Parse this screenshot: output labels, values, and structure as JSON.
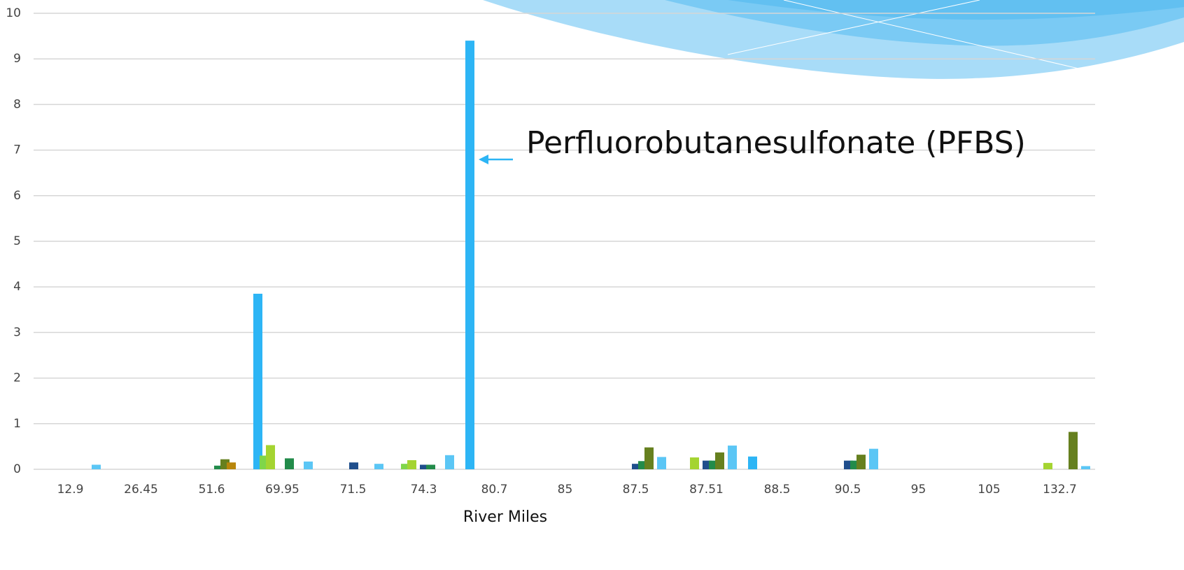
{
  "chart_data": {
    "type": "bar",
    "annotation": "Perfluorobutanesulfonate (PFBS)",
    "x_label": "River Miles",
    "categories": [
      "12.9",
      "26.45",
      "51.6",
      "69.95",
      "71.5",
      "74.3",
      "80.7",
      "85",
      "87.5",
      "87.51",
      "88.5",
      "90.5",
      "95",
      "105",
      "132.7"
    ],
    "series": [
      {
        "color": "#2db5f5",
        "values": [
          0,
          0,
          0,
          3.85,
          0,
          0,
          9.4,
          0,
          0,
          0,
          0.28,
          0,
          0,
          0,
          0
        ]
      },
      {
        "color": "#7fd64a",
        "values": [
          0,
          0,
          0,
          0.3,
          0,
          0.12,
          0,
          0,
          0,
          0,
          0,
          0,
          0,
          0,
          0
        ]
      },
      {
        "color": "#a4d431",
        "values": [
          0,
          0,
          0,
          0.53,
          0,
          0.2,
          0,
          0,
          0,
          0.26,
          0,
          0,
          0,
          0,
          0.14
        ]
      },
      {
        "color": "#1f4e8c",
        "values": [
          0,
          0,
          0,
          0,
          0.15,
          0.1,
          0,
          0,
          0.12,
          0.19,
          0,
          0.19,
          0,
          0,
          0
        ]
      },
      {
        "color": "#228b4a",
        "values": [
          0,
          0,
          0.08,
          0.24,
          0,
          0.1,
          0,
          0,
          0.18,
          0.19,
          0,
          0.19,
          0,
          0,
          0
        ]
      },
      {
        "color": "#66801f",
        "values": [
          0,
          0,
          0.22,
          0,
          0,
          0,
          0,
          0,
          0.48,
          0.37,
          0,
          0.32,
          0,
          0,
          0.82
        ]
      },
      {
        "color": "#b8860b",
        "values": [
          0,
          0,
          0.15,
          0,
          0,
          0,
          0,
          0,
          0,
          0,
          0,
          0,
          0,
          0,
          0
        ]
      },
      {
        "color": "#5bc6f5",
        "values": [
          0.1,
          0,
          0,
          0.17,
          0.12,
          0.31,
          0,
          0,
          0.27,
          0.52,
          0,
          0.45,
          0,
          0,
          0.07
        ]
      }
    ],
    "ylim": [
      0,
      10
    ],
    "yticks": [
      0,
      1,
      2,
      3,
      4,
      5,
      6,
      7,
      8,
      9,
      10
    ],
    "grid": true
  }
}
